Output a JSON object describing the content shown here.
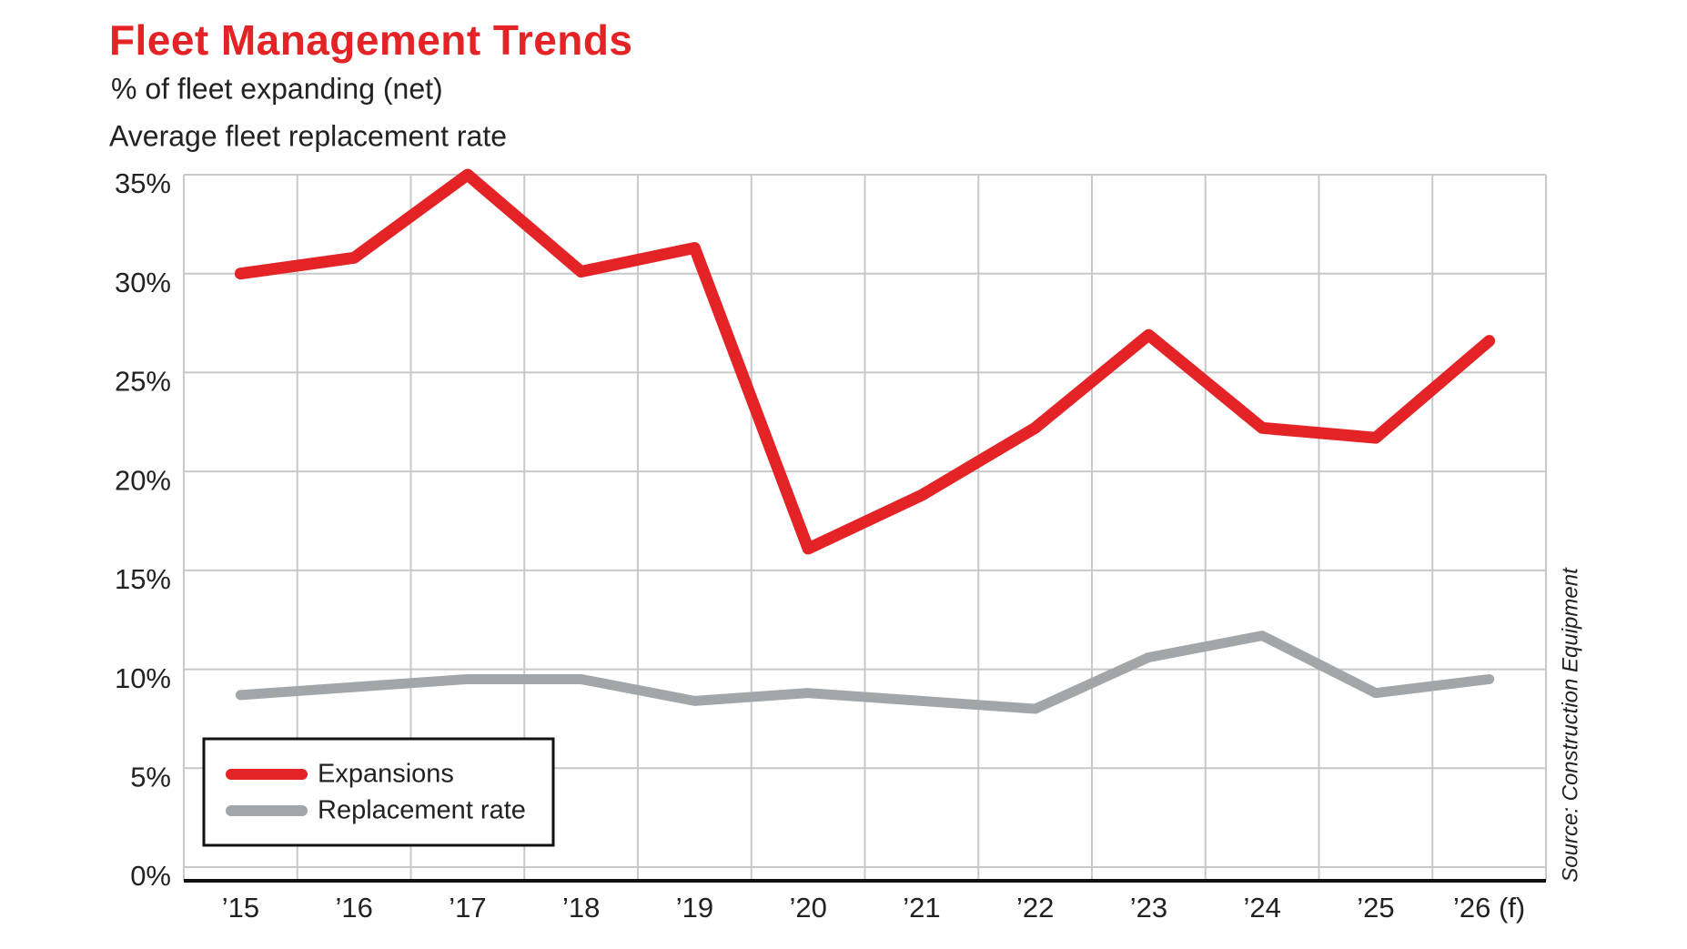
{
  "chart_data": {
    "type": "line",
    "title": "Fleet Management Trends",
    "subtitle": [
      "% of fleet expanding (net)",
      "Average fleet replacement rate"
    ],
    "source": "Source: Construction Equipment",
    "categories": [
      "’15",
      "’16",
      "’17",
      "’18",
      "’19",
      "’20",
      "’21",
      "’22",
      "’23",
      "’24",
      "’25",
      "’26 (f)"
    ],
    "series": [
      {
        "name": "Expansions",
        "color": "#e42326",
        "values": [
          30.0,
          30.8,
          35.0,
          30.1,
          31.3,
          16.1,
          18.8,
          22.2,
          26.9,
          22.2,
          21.7,
          26.6
        ]
      },
      {
        "name": "Replacement rate",
        "color": "#a2a6a9",
        "values": [
          8.7,
          9.1,
          9.5,
          9.5,
          8.4,
          8.8,
          8.4,
          8.0,
          10.6,
          11.7,
          8.8,
          9.5
        ]
      }
    ],
    "ylim": [
      0,
      35
    ],
    "yticks": [
      {
        "value": 0,
        "label": "0%"
      },
      {
        "value": 5,
        "label": "5%"
      },
      {
        "value": 10,
        "label": "10%"
      },
      {
        "value": 15,
        "label": "15%"
      },
      {
        "value": 20,
        "label": "20%"
      },
      {
        "value": 25,
        "label": "25%"
      },
      {
        "value": 30,
        "label": "30%"
      },
      {
        "value": 35,
        "label": "35%"
      }
    ],
    "grid": true,
    "legend": "lower left"
  }
}
